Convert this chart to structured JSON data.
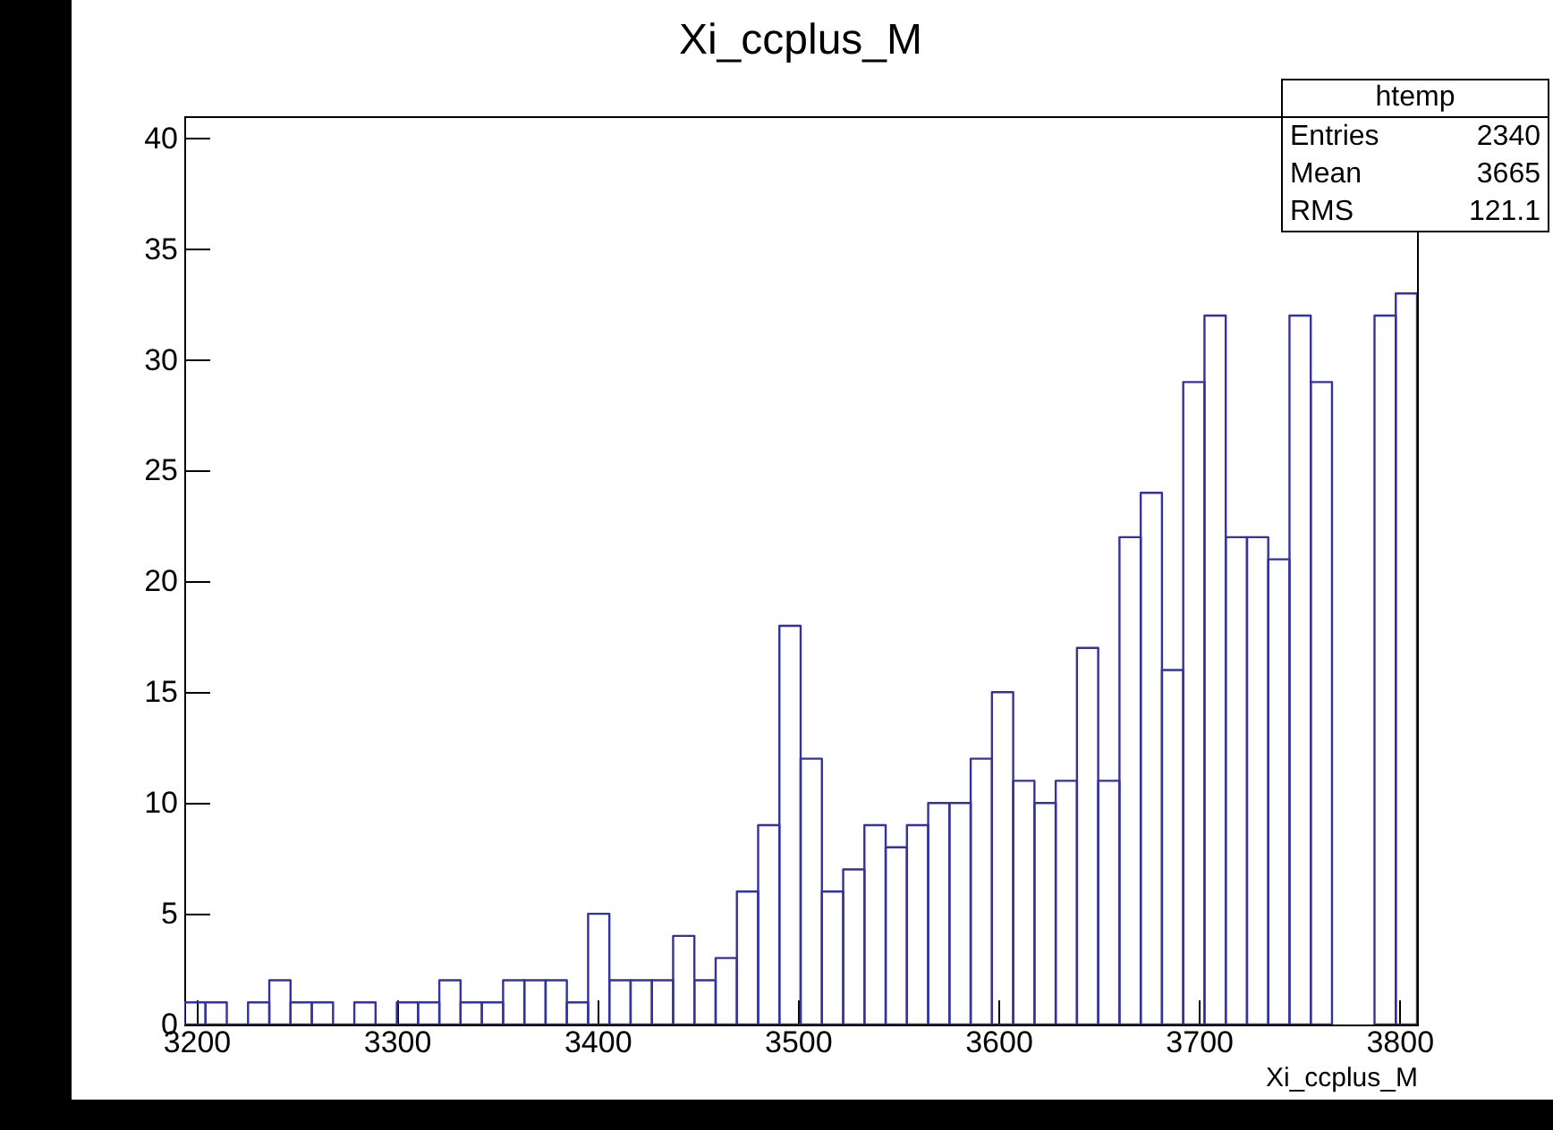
{
  "chart_data": {
    "type": "histogram",
    "title": "Xi_ccplus_M",
    "xlabel": "Xi_ccplus_M",
    "annotations": [
      "htemp",
      "Entries",
      "2340",
      "Mean",
      "3665",
      "RMS",
      "121.1"
    ],
    "bins": [
      3194,
      3204.6,
      3215.2,
      3225.8,
      3236.4,
      3247,
      3257.6,
      3268.2,
      3278.8,
      3289.4,
      3300,
      3310.6,
      3321.2,
      3331.8,
      3342.4,
      3353,
      3363.6,
      3374.2,
      3384.8,
      3395.4,
      3406,
      3416.6,
      3427.2,
      3437.8,
      3448.4,
      3459,
      3469.6,
      3480.2,
      3490.8,
      3501.4,
      3512,
      3522.6,
      3533.2,
      3543.8,
      3554.4,
      3565,
      3575.6,
      3586.2,
      3596.8,
      3607.4,
      3618,
      3628.6,
      3639.2,
      3649.8,
      3660.4,
      3671,
      3681.6,
      3692.2,
      3702.8,
      3713.4,
      3724,
      3734.6,
      3745.2,
      3755.8,
      3766.4,
      3777,
      3787.6,
      3798.2,
      3808.8
    ],
    "values": [
      1,
      1,
      0,
      1,
      2,
      1,
      1,
      0,
      1,
      0,
      1,
      1,
      2,
      1,
      1,
      2,
      2,
      2,
      1,
      5,
      2,
      2,
      2,
      4,
      2,
      3,
      6,
      9,
      18,
      12,
      6,
      7,
      9,
      8,
      9,
      10,
      10,
      12,
      15,
      11,
      10,
      11,
      17,
      11,
      22,
      24,
      16,
      29,
      32,
      22,
      22,
      21,
      32,
      29,
      null,
      null,
      32,
      33
    ],
    "color": "#333399",
    "xlim": [
      3194,
      3808.8
    ],
    "xticks": [
      3200,
      3300,
      3400,
      3500,
      3600,
      3700,
      3800
    ],
    "ylim": [
      0,
      41
    ],
    "yticks": [
      0,
      5,
      10,
      15,
      20,
      25,
      30,
      35,
      40
    ],
    "grid": false
  }
}
